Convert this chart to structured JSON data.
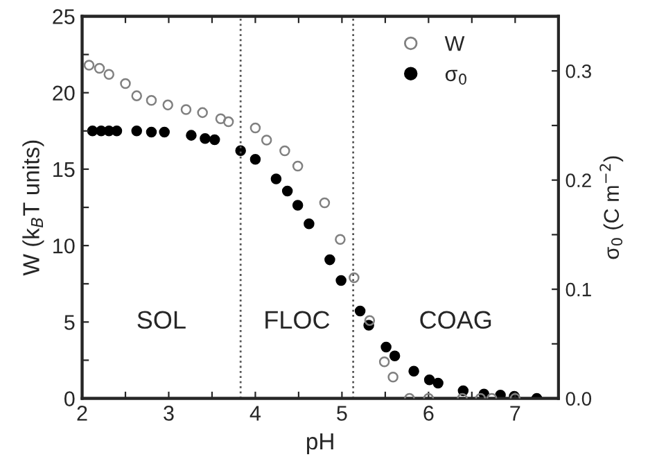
{
  "chart_data": {
    "type": "scatter",
    "xlabel": "pH",
    "ylabel": "W (k$_{B}$T units)",
    "y2label": "σ$_{0}$ (C m$^{−2}$)",
    "series": [
      {
        "name": "W",
        "color": "#808080",
        "marker": "circle",
        "x": [
          2.08,
          2.2,
          2.31,
          2.5,
          2.63,
          2.8,
          2.99,
          3.2,
          3.39,
          3.6,
          3.69,
          4.0,
          4.13,
          4.34,
          4.49,
          4.8,
          4.98,
          5.14,
          5.32,
          5.49,
          5.59,
          5.78,
          6.0,
          6.39,
          6.6,
          6.73,
          7.0
        ],
        "values": [
          21.8,
          21.6,
          21.2,
          20.6,
          19.8,
          19.5,
          19.2,
          18.9,
          18.7,
          18.3,
          18.1,
          17.7,
          16.9,
          16.2,
          15.2,
          12.8,
          10.4,
          7.9,
          5.1,
          2.4,
          1.4,
          0,
          0,
          0,
          0,
          0,
          0
        ]
      },
      {
        "name": "σ$_{0}$",
        "color": "#000000",
        "marker": "circle",
        "axis": "y2",
        "x": [
          2.12,
          2.22,
          2.31,
          2.4,
          2.63,
          2.8,
          2.95,
          3.26,
          3.42,
          3.53,
          3.83,
          4.0,
          4.24,
          4.37,
          4.49,
          4.62,
          4.86,
          4.99,
          5.21,
          5.31,
          5.51,
          5.61,
          5.83,
          6.01,
          6.11,
          6.4,
          6.64,
          6.83,
          6.99,
          7.25
        ],
        "values": [
          0.245,
          0.245,
          0.245,
          0.245,
          0.245,
          0.244,
          0.244,
          0.241,
          0.238,
          0.237,
          0.227,
          0.219,
          0.201,
          0.19,
          0.177,
          0.16,
          0.127,
          0.108,
          0.08,
          0.067,
          0.047,
          0.039,
          0.025,
          0.017,
          0.014,
          0.007,
          0.004,
          0.003,
          0.002,
          0.0
        ]
      }
    ],
    "xlim": [
      2,
      7.5
    ],
    "xticks": [
      2,
      {
        "value": 2.5,
        "label": null
      },
      3,
      {
        "value": 3.5,
        "label": null
      },
      4,
      {
        "value": 4.5,
        "label": null
      },
      5,
      {
        "value": 5.5,
        "label": null
      },
      6,
      {
        "value": 6.5,
        "label": null
      },
      7
    ],
    "ylim": [
      0,
      25
    ],
    "yticks": [
      0,
      {
        "value": 2.5,
        "label": null
      },
      5,
      {
        "value": 7.5,
        "label": null
      },
      10,
      {
        "value": 12.5,
        "label": null
      },
      15,
      {
        "value": 17.5,
        "label": null
      },
      20,
      {
        "value": 22.5,
        "label": null
      },
      25
    ],
    "y2lim": [
      0,
      0.35
    ],
    "y2ticks": [
      {
        "value": 0,
        "label": "0.0"
      },
      {
        "value": 0.05,
        "label": null
      },
      0.1,
      {
        "value": 0.15,
        "label": null
      },
      0.2,
      {
        "value": 0.25,
        "label": null
      },
      0.3
    ],
    "ref_lines": [
      {
        "axis": "x",
        "value": 3.83,
        "line_style": "dotted",
        "color": "#555555"
      },
      {
        "axis": "x",
        "value": 5.13,
        "line_style": "dotted",
        "color": "#555555"
      }
    ],
    "annotations": [
      "SOL",
      "FLOC",
      "COAG"
    ],
    "legend": "top right",
    "grid": false
  }
}
